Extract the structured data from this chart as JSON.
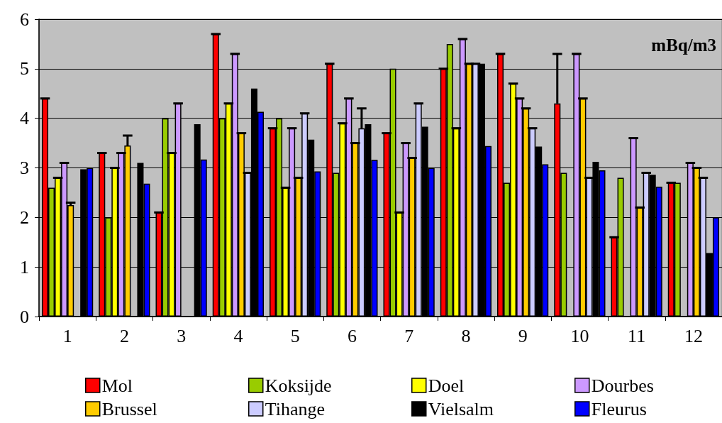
{
  "chart_data": {
    "type": "bar",
    "annotations": [
      "mBq/m3"
    ],
    "categories": [
      "1",
      "2",
      "3",
      "4",
      "5",
      "6",
      "7",
      "8",
      "9",
      "10",
      "11",
      "12"
    ],
    "ylim": [
      0,
      6
    ],
    "yticks": [
      0,
      1,
      2,
      3,
      4,
      5,
      6
    ],
    "grid": "y",
    "legend": "bottom",
    "series": [
      {
        "name": "Mol",
        "color": "#ff0000",
        "values": [
          4.4,
          3.3,
          2.1,
          5.7,
          3.8,
          5.1,
          3.7,
          5.0,
          5.3,
          4.3,
          1.6,
          2.7
        ],
        "errors": [
          [
            4.4,
            4.4
          ],
          [
            3.3,
            3.3
          ],
          [
            2.1,
            2.1
          ],
          [
            5.7,
            5.7
          ],
          [
            3.8,
            3.8
          ],
          [
            5.1,
            5.1
          ],
          [
            3.7,
            3.7
          ],
          [
            5.0,
            5.0
          ],
          [
            5.3,
            5.3
          ],
          [
            4.3,
            5.3
          ],
          [
            1.6,
            1.6
          ],
          [
            2.7,
            2.7
          ]
        ]
      },
      {
        "name": "Koksijde",
        "color": "#99cc00",
        "values": [
          2.6,
          2.0,
          4.0,
          4.0,
          4.0,
          2.9,
          5.0,
          5.5,
          2.7,
          2.9,
          2.8,
          2.7
        ]
      },
      {
        "name": "Doel",
        "color": "#ffff00",
        "values": [
          2.8,
          3.0,
          3.3,
          4.3,
          2.6,
          3.9,
          2.1,
          3.8,
          4.7,
          null,
          null,
          null
        ],
        "errors": [
          [
            2.8,
            2.8
          ],
          [
            3.0,
            3.0
          ],
          [
            3.3,
            3.3
          ],
          [
            4.3,
            4.3
          ],
          [
            2.6,
            2.6
          ],
          [
            3.9,
            3.9
          ],
          [
            2.1,
            2.1
          ],
          [
            3.8,
            3.8
          ],
          [
            4.7,
            4.7
          ],
          null,
          null,
          null
        ]
      },
      {
        "name": "Dourbes",
        "color": "#cc99ff",
        "values": [
          3.1,
          3.3,
          4.3,
          5.3,
          3.8,
          4.4,
          3.5,
          5.6,
          4.4,
          5.3,
          3.6,
          3.1
        ],
        "errors": [
          [
            3.1,
            3.1
          ],
          [
            3.3,
            3.3
          ],
          [
            4.3,
            4.3
          ],
          [
            5.3,
            5.3
          ],
          [
            3.8,
            3.8
          ],
          [
            4.4,
            4.4
          ],
          [
            3.5,
            3.5
          ],
          [
            5.6,
            5.6
          ],
          [
            4.4,
            4.4
          ],
          [
            5.3,
            5.3
          ],
          [
            3.6,
            3.6
          ],
          [
            3.1,
            3.1
          ]
        ]
      },
      {
        "name": "Brussel",
        "color": "#ffcc00",
        "values": [
          2.25,
          3.45,
          null,
          3.7,
          2.8,
          3.5,
          3.2,
          5.1,
          4.2,
          4.4,
          2.2,
          3.0
        ],
        "errors": [
          [
            2.25,
            2.3
          ],
          [
            3.45,
            3.65
          ],
          null,
          [
            3.7,
            3.7
          ],
          [
            2.8,
            2.8
          ],
          [
            3.5,
            3.5
          ],
          [
            3.2,
            3.2
          ],
          [
            5.1,
            5.1
          ],
          [
            4.2,
            4.2
          ],
          [
            4.4,
            4.4
          ],
          [
            2.2,
            2.2
          ],
          [
            3.0,
            3.0
          ]
        ]
      },
      {
        "name": "Tihange",
        "color": "#ccccff",
        "values": [
          null,
          null,
          null,
          2.9,
          4.1,
          3.8,
          4.3,
          5.1,
          3.8,
          2.8,
          2.9,
          2.8
        ],
        "errors": [
          null,
          null,
          null,
          [
            2.9,
            2.9
          ],
          [
            4.1,
            4.1
          ],
          [
            3.8,
            4.2
          ],
          [
            4.3,
            4.3
          ],
          [
            5.1,
            5.1
          ],
          [
            3.8,
            3.8
          ],
          [
            2.8,
            2.8
          ],
          [
            2.9,
            2.9
          ],
          [
            2.8,
            2.8
          ]
        ]
      },
      {
        "name": "Vielsalm",
        "color": "#000000",
        "values": [
          2.97,
          3.1,
          3.88,
          4.6,
          3.57,
          3.88,
          3.83,
          5.1,
          3.43,
          3.12,
          2.86,
          1.28
        ]
      },
      {
        "name": "Fleurus",
        "color": "#0000ff",
        "values": [
          3.0,
          2.68,
          3.17,
          4.13,
          2.93,
          3.16,
          3.0,
          3.44,
          3.07,
          2.95,
          2.62,
          2.0
        ]
      }
    ]
  }
}
